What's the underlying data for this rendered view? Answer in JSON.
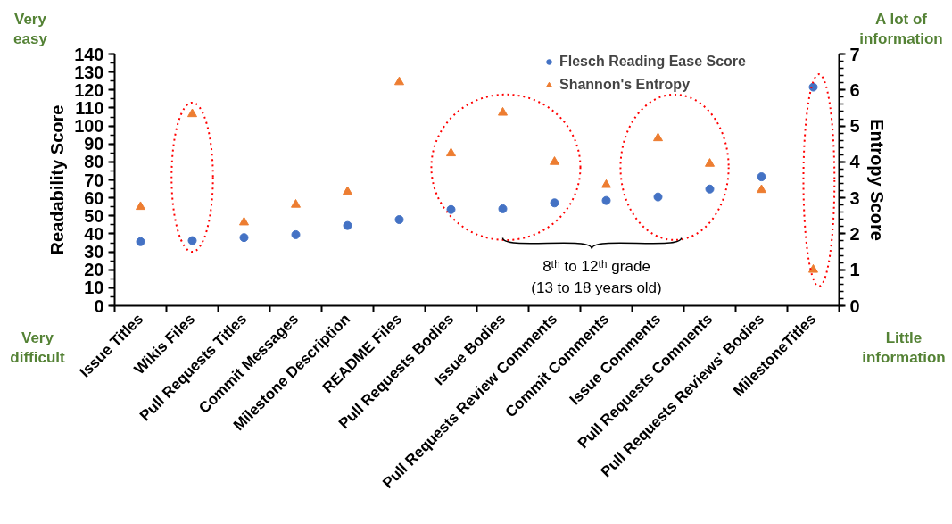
{
  "chart_data": {
    "type": "scatter",
    "categories": [
      "Issue Titles",
      "Wikis Files",
      "Pull Requests Titles",
      "Commit Messages",
      "Milestone Description",
      "README Files",
      "Pull Requests Bodies",
      "Issue Bodies",
      "Pull Requests Review Comments",
      "Commit Comments",
      "Issue Comments",
      "Pull Requests Comments",
      "Pull Requests Reviews' Bodies",
      "MilestoneTitles"
    ],
    "series": [
      {
        "name": "Flesch Reading Ease Score",
        "color": "#4472c4",
        "marker": "circle",
        "values": [
          35.6,
          36.2,
          37.9,
          39.5,
          44.6,
          47.9,
          53.5,
          53.9,
          57.2,
          58.5,
          60.5,
          64.9,
          71.7,
          121.6
        ]
      },
      {
        "name": "Shannon's Entropy",
        "color": "#ed7d31",
        "marker": "triangle",
        "axis": "y2",
        "values": [
          2.75,
          5.33,
          2.32,
          2.81,
          3.17,
          6.22,
          4.24,
          5.37,
          4.0,
          3.36,
          4.66,
          3.95,
          3.22,
          1.0
        ]
      }
    ],
    "ylabel": "Readability Score",
    "y2label": "Entropy Score",
    "ylim": [
      0,
      140
    ],
    "yticks": [
      0,
      10,
      20,
      30,
      40,
      50,
      60,
      70,
      80,
      90,
      100,
      110,
      120,
      130,
      140
    ],
    "y2lim": [
      0,
      7
    ],
    "y2ticks": [
      0,
      1,
      2,
      3,
      4,
      5,
      6,
      7
    ],
    "grid": false,
    "legend": "top",
    "annotations": [
      "Very\neasy",
      "Very\ndifficult",
      "A lot of\ninformation",
      "Little\ninformation",
      "8ᵗʰ to 12ᵗʰ grade\n(13 to 18 years old)"
    ]
  }
}
